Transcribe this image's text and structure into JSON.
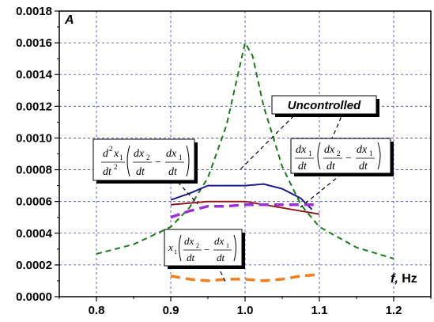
{
  "chart_data": {
    "type": "line",
    "xlabel": "f, Hz",
    "xlabel_main": "f,",
    "xlabel_unit": " Hz",
    "ylabel": "A",
    "xlim": [
      0.75,
      1.25
    ],
    "ylim": [
      0,
      0.0018
    ],
    "x_ticks": [
      "0.8",
      "0.9",
      "1.0",
      "1.1",
      "1.2"
    ],
    "y_ticks": [
      "0.0000",
      "0.0002",
      "0.0004",
      "0.0006",
      "0.0008",
      "0.0010",
      "0.0012",
      "0.0014",
      "0.0016",
      "0.0018"
    ],
    "grid": true,
    "series": [
      {
        "name": "Uncontrolled",
        "color": "#1a7a1a",
        "style": "dashed",
        "points": [
          [
            0.8,
            0.00027
          ],
          [
            0.85,
            0.00033
          ],
          [
            0.9,
            0.00044
          ],
          [
            0.925,
            0.00056
          ],
          [
            0.95,
            0.00075
          ],
          [
            0.975,
            0.00108
          ],
          [
            1.0,
            0.0016
          ],
          [
            1.01,
            0.00152
          ],
          [
            1.025,
            0.0012
          ],
          [
            1.05,
            0.00082
          ],
          [
            1.075,
            0.00058
          ],
          [
            1.1,
            0.00044
          ],
          [
            1.15,
            0.00031
          ],
          [
            1.2,
            0.00024
          ]
        ]
      },
      {
        "name": "",
        "color": "#1c1c8c",
        "style": "solid",
        "points": [
          [
            0.9,
            0.00061
          ],
          [
            0.925,
            0.00065
          ],
          [
            0.95,
            0.0007
          ],
          [
            0.975,
            0.0007
          ],
          [
            1.0,
            0.0007
          ],
          [
            1.025,
            0.00071
          ],
          [
            1.05,
            0.00068
          ],
          [
            1.075,
            0.00062
          ],
          [
            1.09,
            0.00055
          ]
        ]
      },
      {
        "name": "",
        "color": "#8b1a1a",
        "style": "solid",
        "points": [
          [
            0.9,
            0.00058
          ],
          [
            0.925,
            0.00059
          ],
          [
            0.95,
            0.0006
          ],
          [
            0.975,
            0.0006
          ],
          [
            1.0,
            0.0006
          ],
          [
            1.025,
            0.00058
          ],
          [
            1.05,
            0.00056
          ],
          [
            1.075,
            0.00054
          ],
          [
            1.1,
            0.00052
          ]
        ]
      },
      {
        "name": "",
        "color": "#9b30d9",
        "style": "dashed",
        "points": [
          [
            0.9,
            0.0005
          ],
          [
            0.925,
            0.00054
          ],
          [
            0.95,
            0.00057
          ],
          [
            0.975,
            0.00057
          ],
          [
            1.0,
            0.00058
          ],
          [
            1.025,
            0.00058
          ],
          [
            1.05,
            0.00058
          ],
          [
            1.075,
            0.00058
          ],
          [
            1.1,
            0.00058
          ]
        ]
      },
      {
        "name": "",
        "color": "#f07f1e",
        "style": "dashed",
        "points": [
          [
            0.9,
            0.00013
          ],
          [
            0.925,
            0.00011
          ],
          [
            0.95,
            0.0001
          ],
          [
            0.975,
            0.00011
          ],
          [
            1.0,
            0.00011
          ],
          [
            1.025,
            0.0001
          ],
          [
            1.05,
            0.00011
          ],
          [
            1.075,
            0.00013
          ],
          [
            1.1,
            0.00014
          ]
        ]
      }
    ],
    "annotations": [
      {
        "label": "Uncontrolled"
      }
    ]
  }
}
